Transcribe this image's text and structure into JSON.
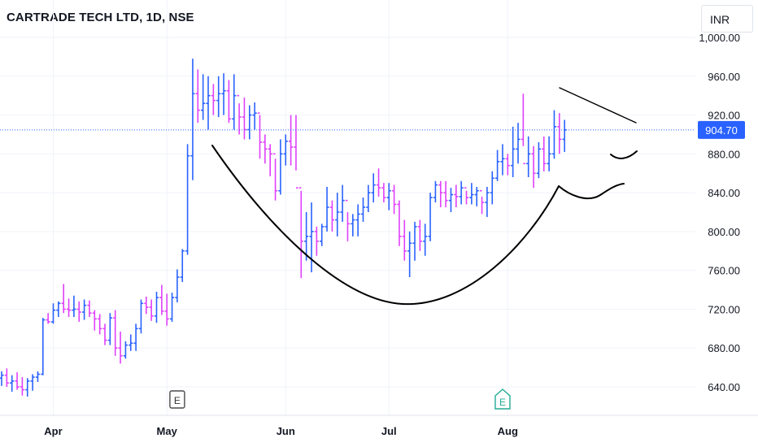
{
  "header": {
    "title": "CARTRADE TECH LTD, 1D, NSE"
  },
  "currency": "INR",
  "colors": {
    "up": "#2962ff",
    "down": "#e040fb",
    "pattern": "#000000",
    "last_price_label": "#2962ff",
    "grid": "#f0f3fa"
  },
  "chart_data": {
    "type": "bar",
    "style": "ohlc",
    "ylim": [
      600,
      1006
    ],
    "price_axis_ticks": [
      "1,000.00",
      "960.00",
      "920.00",
      "880.00",
      "840.00",
      "800.00",
      "760.00",
      "720.00",
      "680.00",
      "640.00"
    ],
    "price_axis_values": [
      1000,
      960,
      920,
      880,
      840,
      800,
      760,
      720,
      680,
      640
    ],
    "time_axis_labels": [
      {
        "label": "Apr",
        "date": "2024-04-01"
      },
      {
        "label": "May",
        "date": "2024-05-01"
      },
      {
        "label": "Jun",
        "date": "2024-06-01"
      },
      {
        "label": "Jul",
        "date": "2024-07-01"
      },
      {
        "label": "Aug",
        "date": "2024-08-01"
      }
    ],
    "last_price": {
      "value": 904.7,
      "label": "904.70"
    },
    "earnings_markers": [
      {
        "label": "E",
        "date": "2024-05-03",
        "style": "past"
      },
      {
        "label": "E",
        "date": "2024-07-31",
        "style": "upcoming"
      }
    ],
    "annotations": [
      "cup",
      "handle",
      "resistance trendline"
    ],
    "series": [
      {
        "values": [
          [
            649,
            656,
            641,
            652
          ],
          [
            652,
            659,
            640,
            644
          ],
          [
            644,
            652,
            635,
            646
          ],
          [
            646,
            655,
            637,
            640
          ],
          [
            640,
            650,
            631,
            637
          ],
          [
            637,
            649,
            630,
            646
          ],
          [
            646,
            653,
            636,
            650
          ],
          [
            650,
            656,
            645,
            653
          ],
          [
            653,
            711,
            652,
            709
          ],
          [
            709,
            716,
            705,
            707
          ],
          [
            707,
            726,
            705,
            719
          ],
          [
            719,
            728,
            712,
            726
          ],
          [
            726,
            746,
            716,
            720
          ],
          [
            720,
            731,
            712,
            719
          ],
          [
            719,
            734,
            712,
            720
          ],
          [
            720,
            728,
            707,
            717
          ],
          [
            717,
            730,
            709,
            724
          ],
          [
            724,
            729,
            712,
            716
          ],
          [
            716,
            719,
            698,
            710
          ],
          [
            710,
            715,
            694,
            700
          ],
          [
            700,
            705,
            683,
            688
          ],
          [
            688,
            716,
            683,
            711
          ],
          [
            711,
            719,
            672,
            680
          ],
          [
            680,
            697,
            664,
            672
          ],
          [
            672,
            687,
            669,
            683
          ],
          [
            683,
            694,
            677,
            685
          ],
          [
            685,
            705,
            677,
            700
          ],
          [
            700,
            730,
            695,
            726
          ],
          [
            726,
            733,
            715,
            722
          ],
          [
            722,
            730,
            708,
            713
          ],
          [
            713,
            738,
            706,
            732
          ],
          [
            732,
            745,
            714,
            718
          ],
          [
            718,
            736,
            703,
            710
          ],
          [
            710,
            737,
            707,
            732
          ],
          [
            732,
            761,
            727,
            753
          ],
          [
            753,
            782,
            748,
            780
          ],
          [
            780,
            890,
            776,
            878
          ],
          [
            878,
            978,
            853,
            942
          ],
          [
            942,
            967,
            912,
            925
          ],
          [
            925,
            962,
            915,
            932
          ],
          [
            932,
            960,
            905,
            940
          ],
          [
            940,
            952,
            920,
            935
          ],
          [
            935,
            960,
            918,
            942
          ],
          [
            942,
            963,
            920,
            945
          ],
          [
            945,
            956,
            912,
            916
          ],
          [
            916,
            962,
            905,
            940
          ],
          [
            940,
            932,
            900,
            918
          ],
          [
            918,
            938,
            895,
            905
          ],
          [
            905,
            930,
            895,
            920
          ],
          [
            920,
            933,
            905,
            922
          ],
          [
            922,
            920,
            875,
            892
          ],
          [
            892,
            900,
            870,
            885
          ],
          [
            885,
            890,
            857,
            880
          ],
          [
            880,
            875,
            832,
            842
          ],
          [
            842,
            895,
            838,
            880
          ],
          [
            880,
            900,
            868,
            893
          ],
          [
            893,
            920,
            868,
            887
          ],
          [
            887,
            920,
            863,
            845
          ],
          [
            845,
            842,
            752,
            790
          ],
          [
            790,
            820,
            770,
            795
          ],
          [
            795,
            830,
            758,
            800
          ],
          [
            800,
            805,
            775,
            790
          ],
          [
            790,
            808,
            785,
            805
          ],
          [
            805,
            846,
            800,
            825
          ],
          [
            825,
            832,
            800,
            812
          ],
          [
            812,
            840,
            795,
            820
          ],
          [
            820,
            848,
            810,
            832
          ],
          [
            832,
            820,
            790,
            808
          ],
          [
            808,
            818,
            795,
            812
          ],
          [
            812,
            828,
            795,
            818
          ],
          [
            818,
            835,
            810,
            825
          ],
          [
            825,
            848,
            820,
            840
          ],
          [
            840,
            860,
            830,
            848
          ],
          [
            848,
            865,
            836,
            845
          ],
          [
            845,
            850,
            830,
            835
          ],
          [
            835,
            850,
            822,
            842
          ],
          [
            842,
            848,
            818,
            828
          ],
          [
            828,
            832,
            785,
            795
          ],
          [
            795,
            812,
            770,
            780
          ],
          [
            780,
            800,
            753,
            788
          ],
          [
            788,
            810,
            770,
            805
          ],
          [
            805,
            812,
            780,
            790
          ],
          [
            790,
            808,
            775,
            795
          ],
          [
            795,
            840,
            790,
            835
          ],
          [
            835,
            852,
            830,
            848
          ],
          [
            848,
            852,
            825,
            840
          ],
          [
            840,
            852,
            825,
            832
          ],
          [
            832,
            845,
            820,
            838
          ],
          [
            838,
            848,
            825,
            836
          ],
          [
            836,
            852,
            828,
            845
          ],
          [
            845,
            842,
            828,
            835
          ],
          [
            835,
            850,
            828,
            838
          ],
          [
            838,
            846,
            826,
            842
          ],
          [
            842,
            836,
            818,
            830
          ],
          [
            830,
            846,
            815,
            840
          ],
          [
            840,
            862,
            828,
            855
          ],
          [
            855,
            884,
            852,
            872
          ],
          [
            872,
            890,
            858,
            875
          ],
          [
            875,
            880,
            858,
            868
          ],
          [
            868,
            908,
            856,
            885
          ],
          [
            885,
            912,
            870,
            895
          ],
          [
            895,
            942,
            888,
            870
          ],
          [
            870,
            898,
            856,
            880
          ],
          [
            880,
            888,
            845,
            860
          ],
          [
            860,
            892,
            855,
            885
          ],
          [
            885,
            898,
            862,
            870
          ],
          [
            870,
            898,
            862,
            880
          ],
          [
            880,
            925,
            875,
            908
          ],
          [
            908,
            922,
            880,
            895
          ],
          [
            895,
            915,
            882,
            904.7
          ]
        ]
      }
    ]
  }
}
